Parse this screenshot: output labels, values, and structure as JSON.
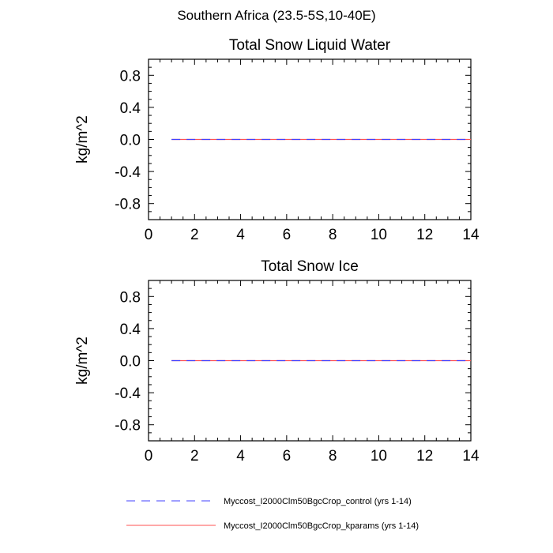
{
  "figure": {
    "title": "Southern Africa (23.5-5S,10-40E)"
  },
  "chart_data": [
    {
      "type": "line",
      "title": "Total Snow Liquid Water",
      "xlabel": "",
      "ylabel": "kg/m^2",
      "xlim": [
        0,
        14
      ],
      "ylim": [
        -1,
        1
      ],
      "x_ticks": [
        0,
        2,
        4,
        6,
        8,
        10,
        12,
        14
      ],
      "y_ticks": [
        0.8,
        0.4,
        0.0,
        -0.4,
        -0.8
      ],
      "x_tick_labels": [
        "0",
        "2",
        "4",
        "6",
        "8",
        "10",
        "12",
        "14"
      ],
      "y_tick_labels": [
        "0.8",
        "0.4",
        "0.0",
        "-0.4",
        "-0.8"
      ],
      "grid": false,
      "x": [
        1,
        2,
        3,
        4,
        5,
        6,
        7,
        8,
        9,
        10,
        11,
        12,
        13,
        14
      ],
      "series": [
        {
          "name": "Myccost_I2000Clm50BgcCrop_control (yrs 1-14)",
          "color": "#4040ff",
          "dash": "dashed",
          "values": [
            0,
            0,
            0,
            0,
            0,
            0,
            0,
            0,
            0,
            0,
            0,
            0,
            0,
            0
          ]
        },
        {
          "name": "Myccost_I2000Clm50BgcCrop_kparams (yrs 1-14)",
          "color": "#ff5050",
          "dash": "solid",
          "values": [
            0,
            0,
            0,
            0,
            0,
            0,
            0,
            0,
            0,
            0,
            0,
            0,
            0,
            0
          ]
        }
      ]
    },
    {
      "type": "line",
      "title": "Total Snow Ice",
      "xlabel": "",
      "ylabel": "kg/m^2",
      "xlim": [
        0,
        14
      ],
      "ylim": [
        -1,
        1
      ],
      "x_ticks": [
        0,
        2,
        4,
        6,
        8,
        10,
        12,
        14
      ],
      "y_ticks": [
        0.8,
        0.4,
        0.0,
        -0.4,
        -0.8
      ],
      "x_tick_labels": [
        "0",
        "2",
        "4",
        "6",
        "8",
        "10",
        "12",
        "14"
      ],
      "y_tick_labels": [
        "0.8",
        "0.4",
        "0.0",
        "-0.4",
        "-0.8"
      ],
      "grid": false,
      "x": [
        1,
        2,
        3,
        4,
        5,
        6,
        7,
        8,
        9,
        10,
        11,
        12,
        13,
        14
      ],
      "series": [
        {
          "name": "Myccost_I2000Clm50BgcCrop_control (yrs 1-14)",
          "color": "#4040ff",
          "dash": "dashed",
          "values": [
            0,
            0,
            0,
            0,
            0,
            0,
            0,
            0,
            0,
            0,
            0,
            0,
            0,
            0
          ]
        },
        {
          "name": "Myccost_I2000Clm50BgcCrop_kparams (yrs 1-14)",
          "color": "#ff5050",
          "dash": "solid",
          "values": [
            0,
            0,
            0,
            0,
            0,
            0,
            0,
            0,
            0,
            0,
            0,
            0,
            0,
            0
          ]
        }
      ]
    }
  ],
  "legend": {
    "placement": "bottom",
    "entries": [
      {
        "label": "Myccost_I2000Clm50BgcCrop_control (yrs 1-14)",
        "color": "#4040ff",
        "dash": "dashed"
      },
      {
        "label": "Myccost_I2000Clm50BgcCrop_kparams (yrs 1-14)",
        "color": "#ff5050",
        "dash": "solid"
      }
    ]
  }
}
